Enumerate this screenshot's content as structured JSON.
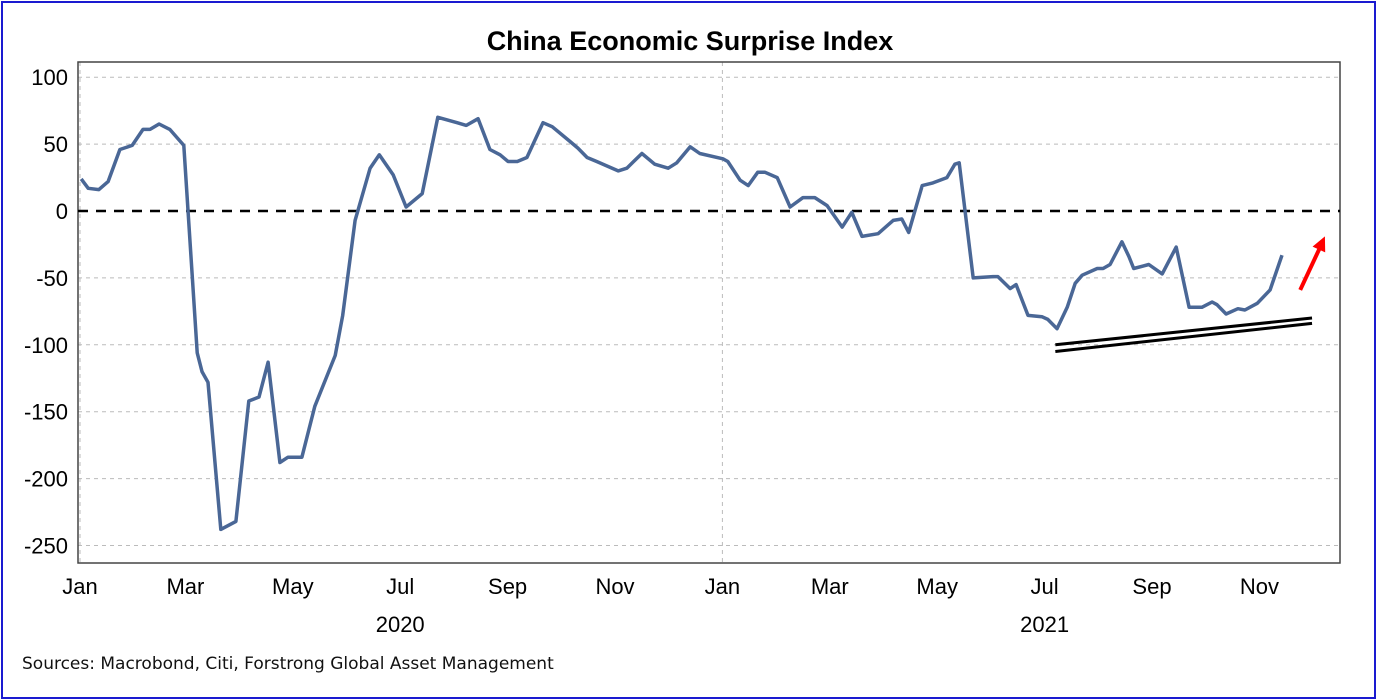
{
  "chart_data": {
    "type": "line",
    "title": "China Economic Surprise Index",
    "xlabel": "",
    "ylabel": "",
    "x_unit": "months since Jan 2020",
    "xlim": [
      0,
      23.5
    ],
    "ylim": [
      -260,
      110
    ],
    "yticks": [
      100,
      50,
      0,
      -50,
      -100,
      -150,
      -200,
      -250
    ],
    "xticks": [
      {
        "m": 0,
        "label": "Jan"
      },
      {
        "m": 2,
        "label": "Mar"
      },
      {
        "m": 4,
        "label": "May"
      },
      {
        "m": 6,
        "label": "Jul"
      },
      {
        "m": 8,
        "label": "Sep"
      },
      {
        "m": 10,
        "label": "Nov"
      },
      {
        "m": 12,
        "label": "Jan"
      },
      {
        "m": 14,
        "label": "Mar"
      },
      {
        "m": 16,
        "label": "May"
      },
      {
        "m": 18,
        "label": "Jul"
      },
      {
        "m": 20,
        "label": "Sep"
      },
      {
        "m": 22,
        "label": "Nov"
      }
    ],
    "year_labels": [
      {
        "m": 6,
        "label": "2020"
      },
      {
        "m": 18,
        "label": "2021"
      }
    ],
    "grid": true,
    "reference_line": 0,
    "series": [
      {
        "name": "China Economic Surprise Index",
        "color": "#4a6796",
        "points": [
          [
            0.06,
            24
          ],
          [
            0.19,
            17
          ],
          [
            0.39,
            16
          ],
          [
            0.56,
            22
          ],
          [
            0.78,
            46
          ],
          [
            1.01,
            49
          ],
          [
            1.21,
            61
          ],
          [
            1.34,
            61
          ],
          [
            1.51,
            65
          ],
          [
            1.71,
            61
          ],
          [
            1.97,
            49
          ],
          [
            2.22,
            -106
          ],
          [
            2.31,
            -120
          ],
          [
            2.42,
            -128
          ],
          [
            2.66,
            -238
          ],
          [
            2.94,
            -232
          ],
          [
            3.18,
            -142
          ],
          [
            3.37,
            -139
          ],
          [
            3.54,
            -113
          ],
          [
            3.76,
            -188
          ],
          [
            3.91,
            -184
          ],
          [
            4.17,
            -184
          ],
          [
            4.41,
            -146
          ],
          [
            4.79,
            -108
          ],
          [
            4.93,
            -78
          ],
          [
            5.16,
            -7
          ],
          [
            5.44,
            32
          ],
          [
            5.61,
            42
          ],
          [
            5.87,
            27
          ],
          [
            6.11,
            3
          ],
          [
            6.41,
            13
          ],
          [
            6.7,
            70
          ],
          [
            7.06,
            66
          ],
          [
            7.23,
            64
          ],
          [
            7.45,
            69
          ],
          [
            7.67,
            46
          ],
          [
            7.86,
            42
          ],
          [
            8.01,
            37
          ],
          [
            8.18,
            37
          ],
          [
            8.36,
            40
          ],
          [
            8.66,
            66
          ],
          [
            8.83,
            63
          ],
          [
            9.16,
            52
          ],
          [
            9.31,
            47
          ],
          [
            9.48,
            40
          ],
          [
            9.66,
            37
          ],
          [
            10.06,
            30
          ],
          [
            10.22,
            32
          ],
          [
            10.5,
            43
          ],
          [
            10.74,
            35
          ],
          [
            10.99,
            32
          ],
          [
            11.15,
            36
          ],
          [
            11.4,
            48
          ],
          [
            11.58,
            43
          ],
          [
            12.01,
            39
          ],
          [
            12.1,
            37
          ],
          [
            12.33,
            23
          ],
          [
            12.48,
            19
          ],
          [
            12.66,
            29
          ],
          [
            12.79,
            29
          ],
          [
            13.02,
            25
          ],
          [
            13.26,
            3
          ],
          [
            13.5,
            10
          ],
          [
            13.72,
            10
          ],
          [
            13.95,
            4
          ],
          [
            14.23,
            -12
          ],
          [
            14.41,
            -1
          ],
          [
            14.6,
            -19
          ],
          [
            14.9,
            -17
          ],
          [
            15.18,
            -7
          ],
          [
            15.34,
            -6
          ],
          [
            15.47,
            -16
          ],
          [
            15.72,
            19
          ],
          [
            15.92,
            21
          ],
          [
            16.18,
            25
          ],
          [
            16.33,
            35
          ],
          [
            16.41,
            36
          ],
          [
            16.67,
            -50
          ],
          [
            17.04,
            -49
          ],
          [
            17.13,
            -49
          ],
          [
            17.36,
            -58
          ],
          [
            17.47,
            -55
          ],
          [
            17.69,
            -78
          ],
          [
            17.95,
            -79
          ],
          [
            18.06,
            -81
          ],
          [
            18.23,
            -88
          ],
          [
            18.42,
            -72
          ],
          [
            18.57,
            -54
          ],
          [
            18.7,
            -48
          ],
          [
            18.98,
            -43
          ],
          [
            19.09,
            -43
          ],
          [
            19.22,
            -40
          ],
          [
            19.44,
            -23
          ],
          [
            19.57,
            -34
          ],
          [
            19.66,
            -43
          ],
          [
            19.94,
            -40
          ],
          [
            20.19,
            -47
          ],
          [
            20.45,
            -27
          ],
          [
            20.69,
            -72
          ],
          [
            20.93,
            -72
          ],
          [
            21.12,
            -68
          ],
          [
            21.21,
            -70
          ],
          [
            21.38,
            -77
          ],
          [
            21.6,
            -73
          ],
          [
            21.73,
            -74
          ],
          [
            21.96,
            -69
          ],
          [
            22.2,
            -59
          ],
          [
            22.42,
            -33
          ]
        ]
      }
    ],
    "annotations": {
      "trendlines": [
        {
          "from": [
            18.2,
            -100
          ],
          "to": [
            22.98,
            -80
          ],
          "color": "#000000"
        },
        {
          "from": [
            18.2,
            -105
          ],
          "to": [
            22.98,
            -84
          ],
          "color": "#000000"
        }
      ],
      "arrow": {
        "from": [
          22.76,
          -59
        ],
        "to": [
          23.22,
          -19
        ],
        "color": "#ff0000"
      }
    }
  },
  "source": "Sources: Macrobond, Citi, Forstrong Global Asset Management"
}
